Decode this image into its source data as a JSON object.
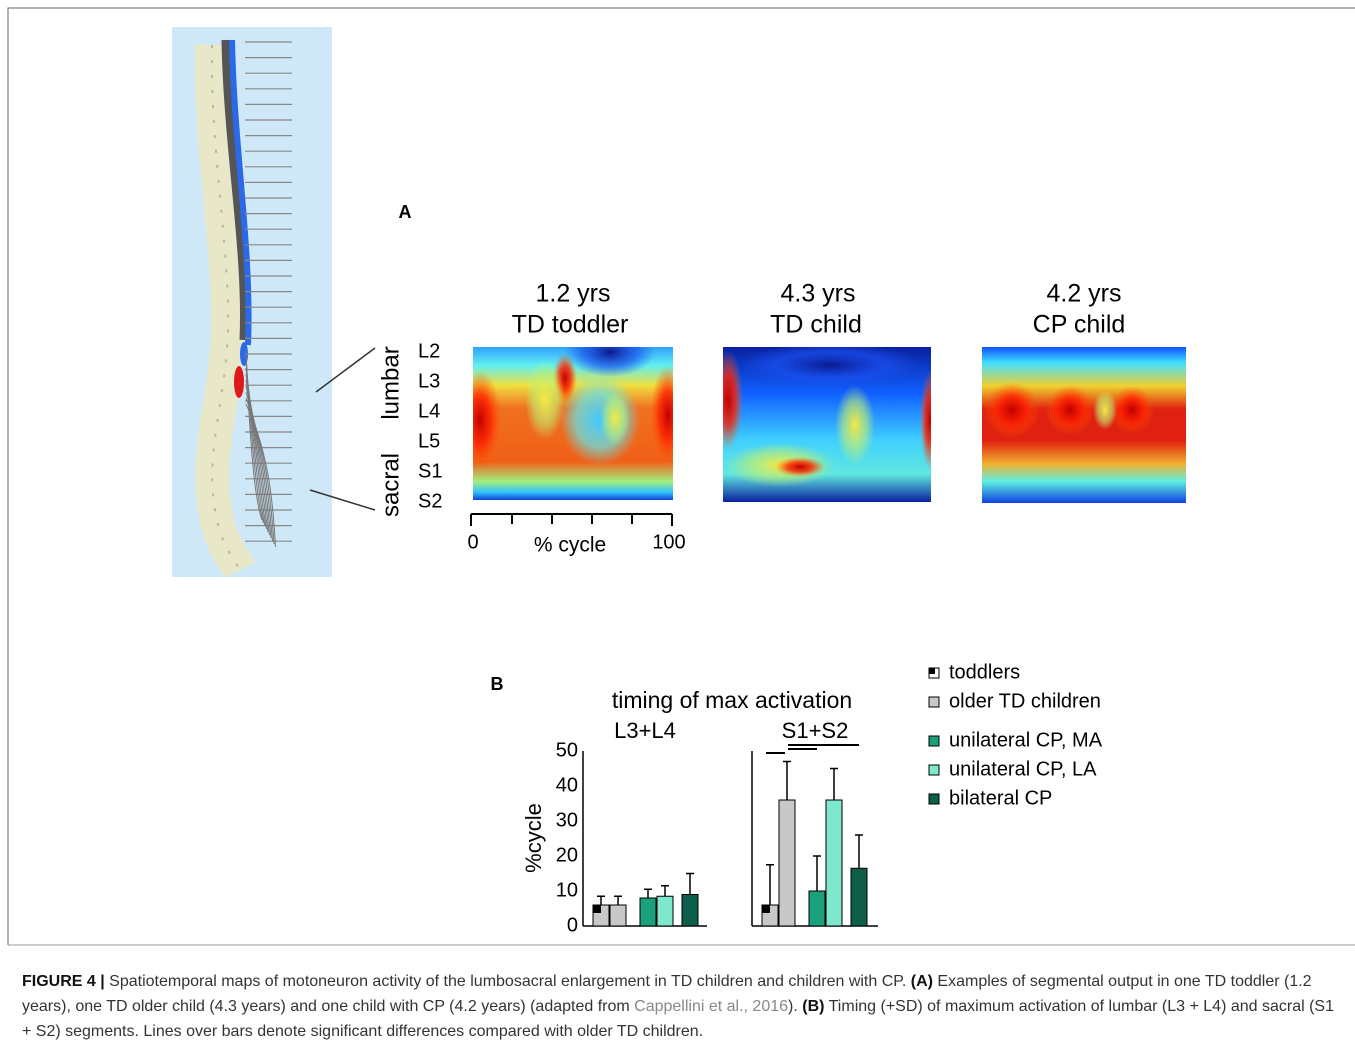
{
  "figure": {
    "panel_a": {
      "label": "A",
      "maps": [
        {
          "age": "1.2 yrs",
          "group": "TD toddler"
        },
        {
          "age": "4.3 yrs",
          "group": "TD child"
        },
        {
          "age": "4.2 yrs",
          "group": "CP child"
        }
      ],
      "regions": [
        {
          "name": "lumbar",
          "color": "#1f5fe0"
        },
        {
          "name": "sacral",
          "color": "#e01818"
        }
      ],
      "segments": [
        "L2",
        "L3",
        "L4",
        "L5",
        "S1",
        "S2"
      ],
      "x_axis": {
        "label": "% cycle",
        "ticks": [
          0,
          100
        ]
      }
    },
    "panel_b_label": "B"
  },
  "chart_data": {
    "type": "bar",
    "title": "timing of max activation",
    "categories": [
      "L3+L4",
      "S1+S2"
    ],
    "ylabel": "%cycle",
    "ylim": [
      0,
      50
    ],
    "yticks": [
      0,
      10,
      20,
      30,
      40,
      50
    ],
    "legend_position": "right",
    "series": [
      {
        "name": "toddlers",
        "color": "#c8c8c8",
        "marker": "corner",
        "values": [
          6,
          6
        ],
        "errors": [
          2.5,
          11.5
        ]
      },
      {
        "name": "older TD children",
        "color": "#c8c8c8",
        "values": [
          6,
          36
        ],
        "errors": [
          2.5,
          11
        ]
      },
      {
        "name": "unilateral CP, MA",
        "color": "#1aa07a",
        "values": [
          8,
          10
        ],
        "errors": [
          2.5,
          10
        ]
      },
      {
        "name": "unilateral CP, LA",
        "color": "#7de8cc",
        "values": [
          8.5,
          36
        ],
        "errors": [
          3,
          9
        ]
      },
      {
        "name": "bilateral CP",
        "color": "#0d5f4a",
        "values": [
          9,
          16.5
        ],
        "errors": [
          6,
          9.5
        ]
      }
    ]
  },
  "caption": {
    "label": "FIGURE 4 |",
    "text_1": " Spatiotemporal maps of motoneuron activity of the lumbosacral enlargement in TD children and children with CP. ",
    "a": "(A)",
    "text_2": " Examples of segmental output in one TD toddler (1.2 years), one TD older child (4.3 years) and one child with CP (4.2 years) (adapted from ",
    "citation": "Cappellini et al., 2016",
    "text_3": "). ",
    "b": "(B)",
    "text_4": " Timing (+SD) of maximum activation of lumbar (L3 + L4) and sacral (S1 + S2) segments. Lines over bars denote significant differences compared with older TD children."
  }
}
